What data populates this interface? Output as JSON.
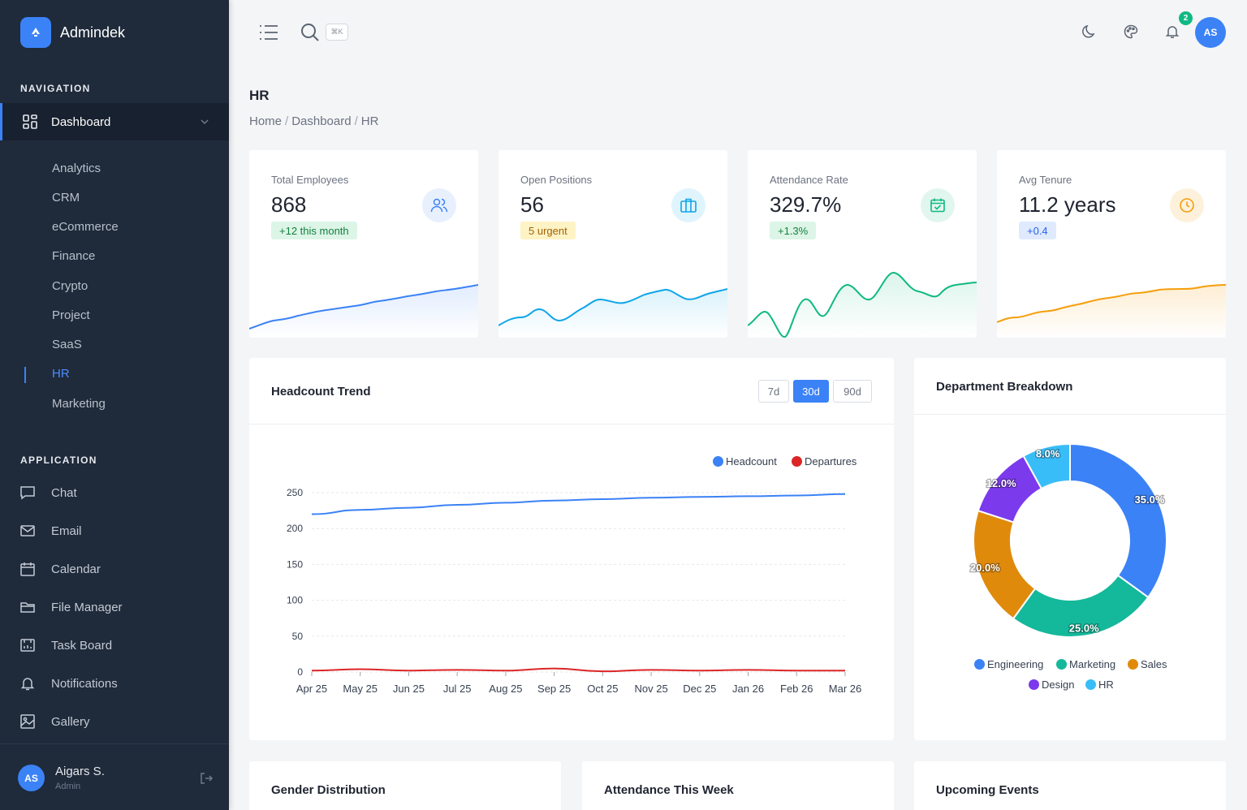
{
  "brand": {
    "name": "Admindek"
  },
  "nav": {
    "section_navigation": "NAVIGATION",
    "dashboard_label": "Dashboard",
    "sub_items": [
      "Analytics",
      "CRM",
      "eCommerce",
      "Finance",
      "Crypto",
      "Project",
      "SaaS",
      "HR",
      "Marketing"
    ],
    "active_sub": "HR",
    "section_application": "APPLICATION",
    "app_items": [
      {
        "label": "Chat",
        "icon": "chat-icon"
      },
      {
        "label": "Email",
        "icon": "mail-icon"
      },
      {
        "label": "Calendar",
        "icon": "calendar-icon"
      },
      {
        "label": "File Manager",
        "icon": "folder-icon"
      },
      {
        "label": "Task Board",
        "icon": "task-board-icon"
      },
      {
        "label": "Notifications",
        "icon": "bell-icon"
      },
      {
        "label": "Gallery",
        "icon": "image-icon"
      }
    ]
  },
  "user": {
    "initials": "AS",
    "name": "Aigars S.",
    "role": "Admin"
  },
  "topbar": {
    "shortcut": "⌘K",
    "notification_count": "2",
    "avatar_initials": "AS"
  },
  "page": {
    "title": "HR",
    "breadcrumb": [
      "Home",
      "Dashboard",
      "HR"
    ]
  },
  "stats": [
    {
      "label": "Total Employees",
      "value": "868",
      "badge": "+12 this month",
      "icon": "users-icon",
      "color": "#3b82f6"
    },
    {
      "label": "Open Positions",
      "value": "56",
      "badge": "5 urgent",
      "icon": "briefcase-icon",
      "color": "#0ea5e9"
    },
    {
      "label": "Attendance Rate",
      "value": "329.7%",
      "badge": "+1.3%",
      "icon": "calendar-check-icon",
      "color": "#10b981"
    },
    {
      "label": "Avg Tenure",
      "value": "11.2 years",
      "badge": "+0.4",
      "icon": "clock-icon",
      "color": "#f59e0b"
    }
  ],
  "headcount": {
    "title": "Headcount Trend",
    "ranges": [
      "7d",
      "30d",
      "90d"
    ],
    "active_range": "30d"
  },
  "department": {
    "title": "Department Breakdown"
  },
  "bottom_panels": {
    "gender_title": "Gender Distribution",
    "attendance_title": "Attendance This Week",
    "events_title": "Upcoming Events"
  },
  "chart_data": [
    {
      "type": "line",
      "title": "Headcount Trend",
      "categories": [
        "Apr 25",
        "May 25",
        "Jun 25",
        "Jul 25",
        "Aug 25",
        "Sep 25",
        "Oct 25",
        "Nov 25",
        "Dec 25",
        "Jan 26",
        "Feb 26",
        "Mar 26"
      ],
      "ylim": [
        0,
        250
      ],
      "yticks": [
        0,
        50,
        100,
        150,
        200,
        250
      ],
      "legend_position": "top-right",
      "grid": true,
      "series": [
        {
          "name": "Headcount",
          "color": "#3b82f6",
          "values": [
            220,
            226,
            229,
            233,
            236,
            239,
            241,
            243,
            244,
            245,
            246,
            248
          ]
        },
        {
          "name": "Departures",
          "color": "#dc2626",
          "values": [
            2,
            4,
            2,
            3,
            2,
            5,
            1,
            3,
            2,
            3,
            2,
            2
          ]
        }
      ]
    },
    {
      "type": "pie",
      "title": "Department Breakdown",
      "donut": true,
      "legend_position": "bottom",
      "labels": [
        "Engineering",
        "Marketing",
        "Sales",
        "Design",
        "HR"
      ],
      "values": [
        35.0,
        25.0,
        20.0,
        12.0,
        8.0
      ],
      "value_labels": [
        "35.0%",
        "25.0%",
        "20.0%",
        "12.0%",
        "8.0%"
      ],
      "colors": [
        "#3b82f6",
        "#14b89a",
        "#e08a0c",
        "#7c3aed",
        "#38bdf8"
      ]
    }
  ]
}
